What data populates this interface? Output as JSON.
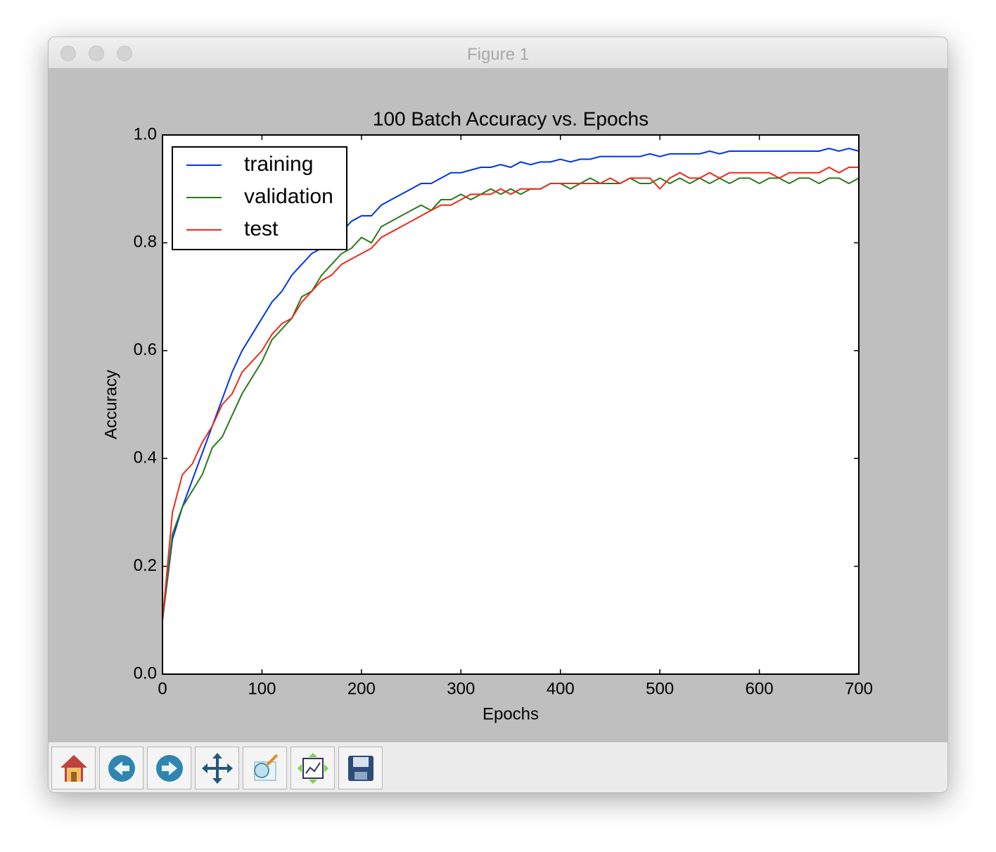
{
  "window": {
    "title": "Figure 1"
  },
  "chart_data": {
    "type": "line",
    "title": "100 Batch Accuracy vs. Epochs",
    "x_label": "Epochs",
    "y_label": "Accuracy",
    "x": [
      0,
      10,
      20,
      30,
      40,
      50,
      60,
      70,
      80,
      90,
      100,
      110,
      120,
      130,
      140,
      150,
      160,
      170,
      180,
      190,
      200,
      210,
      220,
      230,
      240,
      250,
      260,
      270,
      280,
      290,
      300,
      310,
      320,
      330,
      340,
      350,
      360,
      370,
      380,
      390,
      400,
      410,
      420,
      430,
      440,
      450,
      460,
      470,
      480,
      490,
      500,
      510,
      520,
      530,
      540,
      550,
      560,
      570,
      580,
      590,
      600,
      610,
      620,
      630,
      640,
      650,
      660,
      670,
      680,
      690,
      700
    ],
    "series": [
      {
        "name": "training",
        "color": "#0033ee",
        "values": [
          0.1,
          0.25,
          0.31,
          0.36,
          0.41,
          0.46,
          0.51,
          0.56,
          0.6,
          0.63,
          0.66,
          0.69,
          0.71,
          0.74,
          0.76,
          0.78,
          0.79,
          0.81,
          0.82,
          0.84,
          0.85,
          0.85,
          0.87,
          0.88,
          0.89,
          0.9,
          0.91,
          0.91,
          0.92,
          0.93,
          0.93,
          0.935,
          0.94,
          0.94,
          0.945,
          0.94,
          0.95,
          0.945,
          0.95,
          0.95,
          0.955,
          0.95,
          0.955,
          0.955,
          0.96,
          0.96,
          0.96,
          0.96,
          0.96,
          0.965,
          0.96,
          0.965,
          0.965,
          0.965,
          0.965,
          0.97,
          0.965,
          0.97,
          0.97,
          0.97,
          0.97,
          0.97,
          0.97,
          0.97,
          0.97,
          0.97,
          0.97,
          0.975,
          0.97,
          0.975,
          0.97
        ]
      },
      {
        "name": "validation",
        "color": "#2a7a1a",
        "values": [
          0.1,
          0.26,
          0.31,
          0.34,
          0.37,
          0.42,
          0.44,
          0.48,
          0.52,
          0.55,
          0.58,
          0.62,
          0.64,
          0.66,
          0.7,
          0.71,
          0.74,
          0.76,
          0.78,
          0.79,
          0.81,
          0.8,
          0.83,
          0.84,
          0.85,
          0.86,
          0.87,
          0.86,
          0.88,
          0.88,
          0.89,
          0.88,
          0.89,
          0.9,
          0.89,
          0.9,
          0.89,
          0.9,
          0.9,
          0.91,
          0.91,
          0.9,
          0.91,
          0.92,
          0.91,
          0.91,
          0.91,
          0.92,
          0.91,
          0.91,
          0.92,
          0.91,
          0.92,
          0.91,
          0.92,
          0.91,
          0.92,
          0.91,
          0.92,
          0.92,
          0.91,
          0.92,
          0.92,
          0.91,
          0.92,
          0.92,
          0.91,
          0.92,
          0.92,
          0.91,
          0.92
        ]
      },
      {
        "name": "test",
        "color": "#ee2a1a",
        "values": [
          0.1,
          0.3,
          0.37,
          0.39,
          0.43,
          0.46,
          0.5,
          0.52,
          0.56,
          0.58,
          0.6,
          0.63,
          0.65,
          0.66,
          0.69,
          0.71,
          0.73,
          0.74,
          0.76,
          0.77,
          0.78,
          0.79,
          0.81,
          0.82,
          0.83,
          0.84,
          0.85,
          0.86,
          0.87,
          0.87,
          0.88,
          0.89,
          0.89,
          0.89,
          0.9,
          0.89,
          0.9,
          0.9,
          0.9,
          0.91,
          0.91,
          0.91,
          0.91,
          0.91,
          0.91,
          0.92,
          0.91,
          0.92,
          0.92,
          0.92,
          0.9,
          0.92,
          0.93,
          0.92,
          0.92,
          0.93,
          0.92,
          0.93,
          0.93,
          0.93,
          0.93,
          0.93,
          0.92,
          0.93,
          0.93,
          0.93,
          0.93,
          0.94,
          0.93,
          0.94,
          0.94
        ]
      }
    ],
    "xlim": [
      0,
      700
    ],
    "xticks": [
      0,
      100,
      200,
      300,
      400,
      500,
      600,
      700
    ],
    "ylim": [
      0,
      1
    ],
    "yticks": [
      {
        "value": 0,
        "label": "0.0"
      },
      {
        "value": 0.2,
        "label": "0.2"
      },
      {
        "value": 0.4,
        "label": "0.4"
      },
      {
        "value": 0.6,
        "label": "0.6"
      },
      {
        "value": 0.8,
        "label": "0.8"
      },
      {
        "value": 1,
        "label": "1.0"
      }
    ],
    "grid": false,
    "legend": "upper left"
  }
}
